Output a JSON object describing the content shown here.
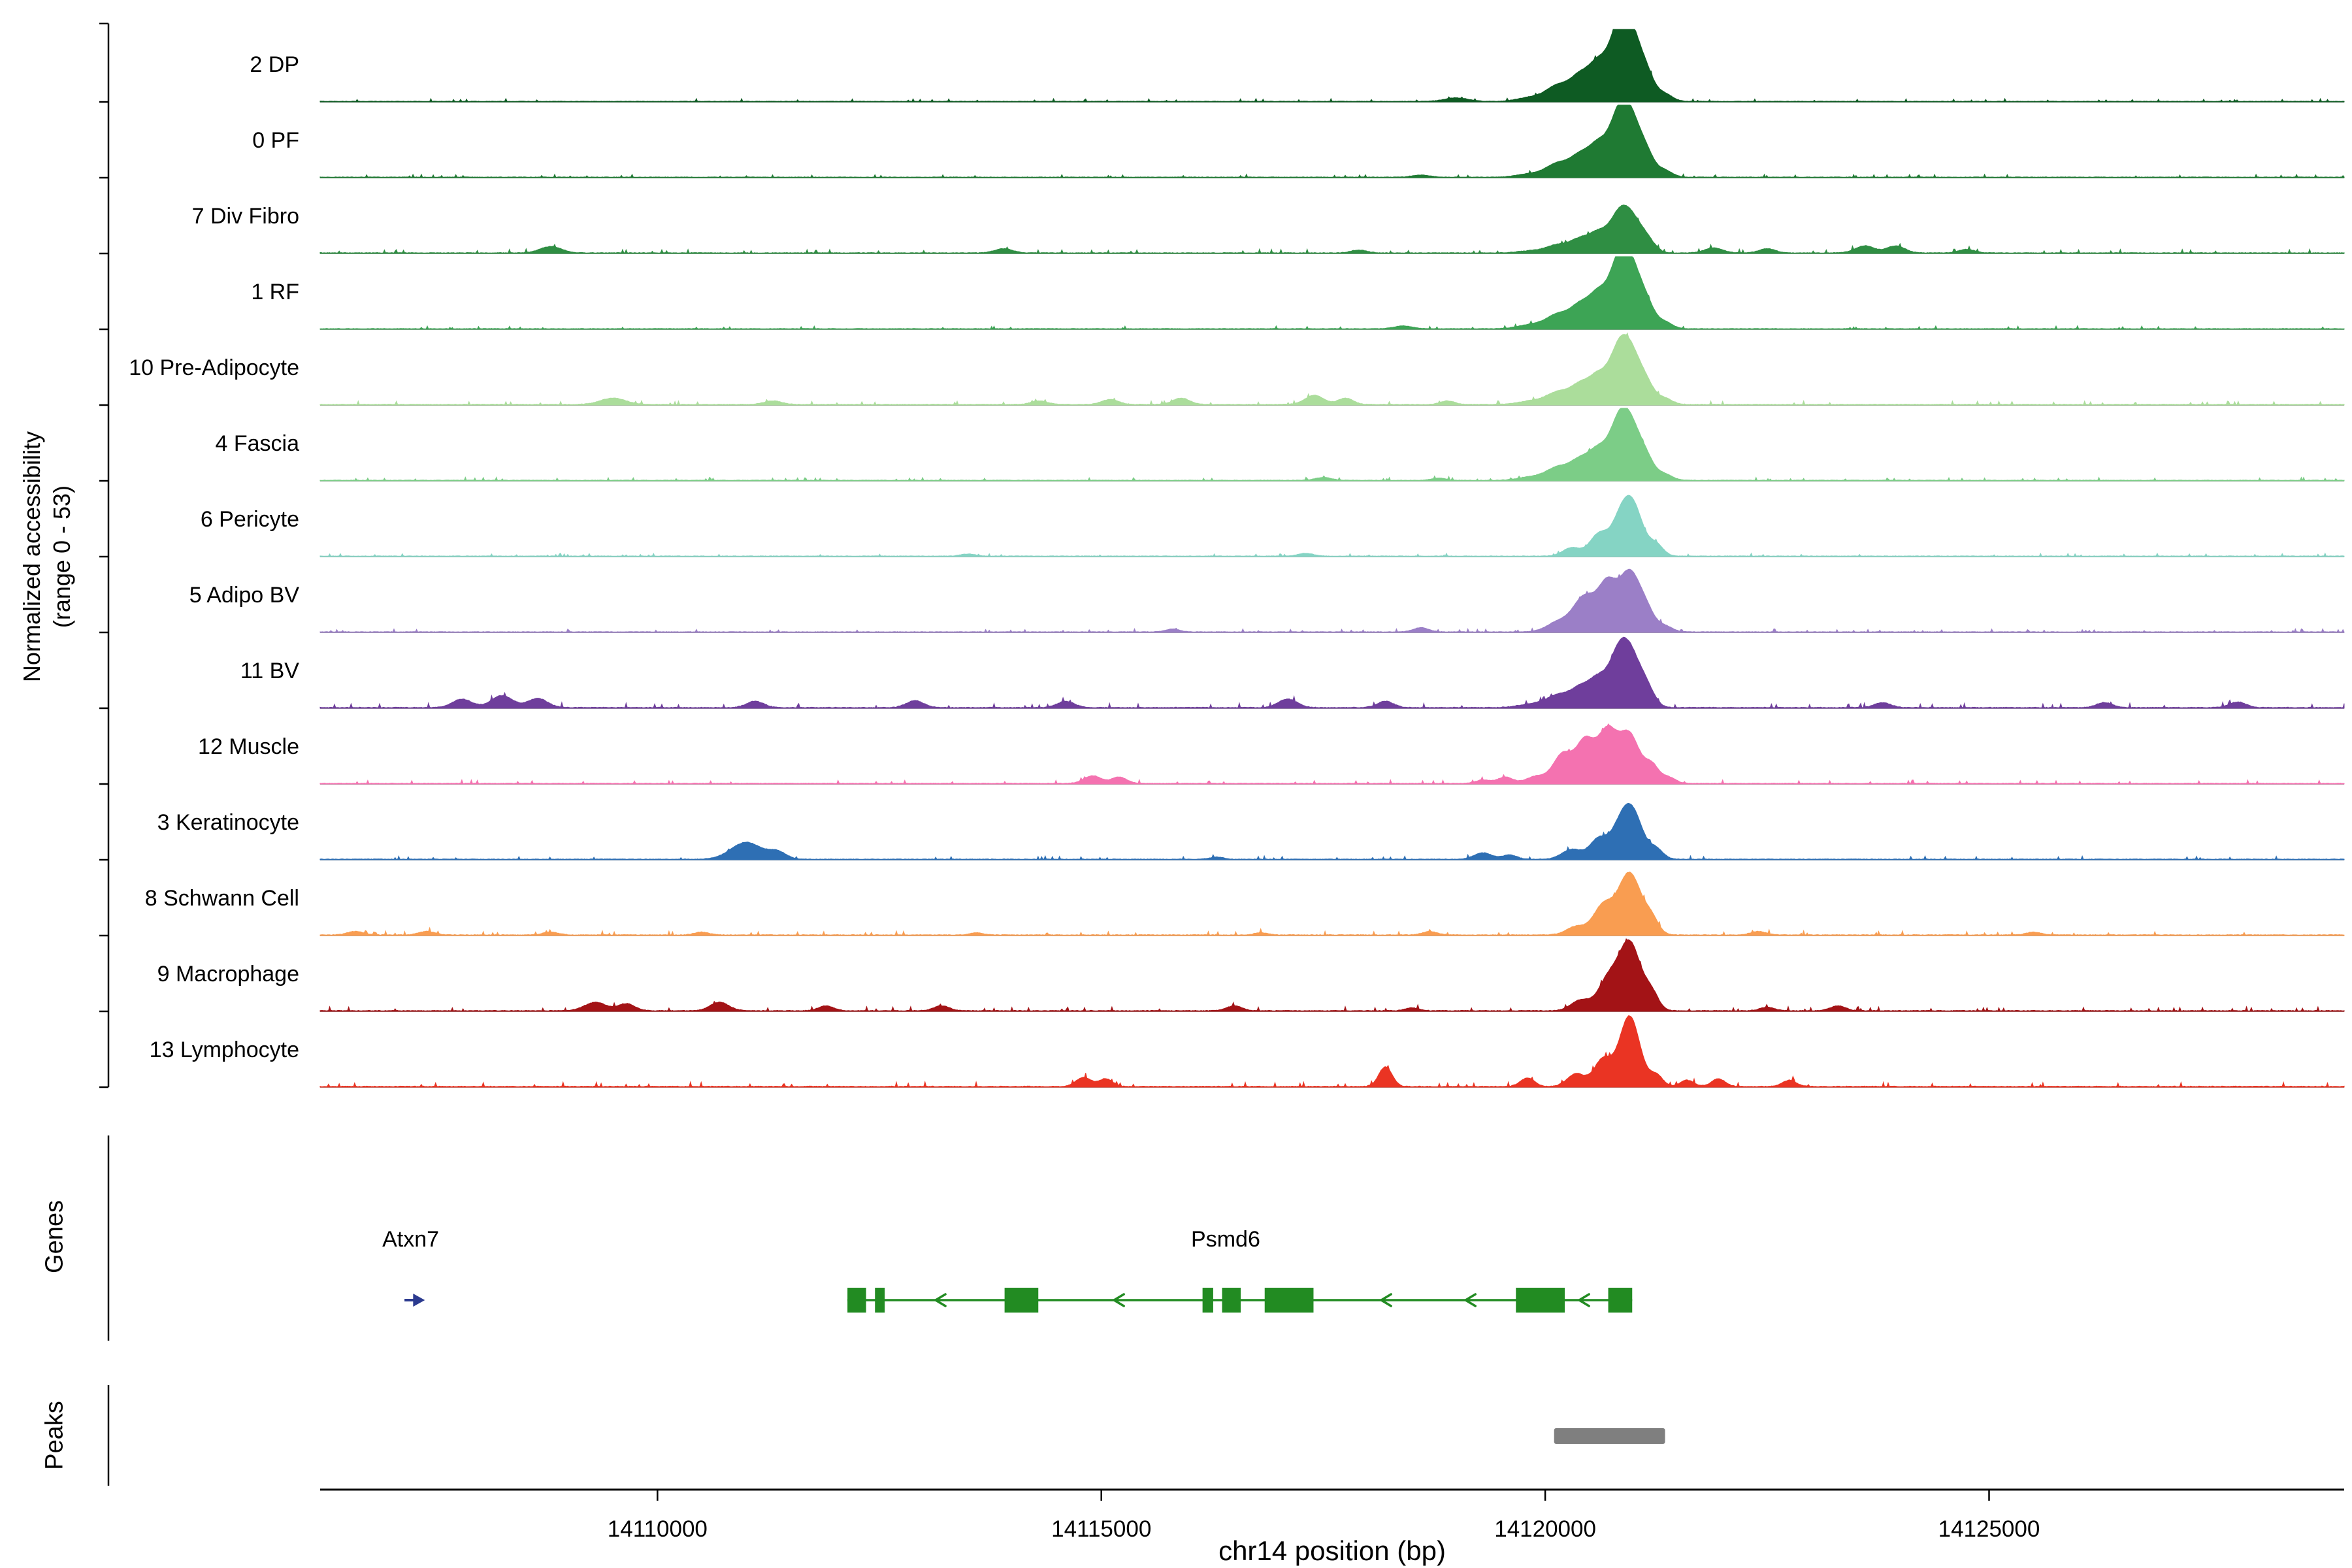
{
  "y_axis": {
    "label_line1": "Normalized accessibility",
    "label_line2": "(range 0 - 53)"
  },
  "sections": {
    "genes_label": "Genes",
    "peaks_label": "Peaks"
  },
  "x_axis": {
    "title": "chr14 position (bp)"
  },
  "chart_data": {
    "type": "area",
    "title": "",
    "xlabel": "chr14 position (bp)",
    "ylabel": "Normalized accessibility (range 0 - 53)",
    "xlim": [
      14106200,
      14129000
    ],
    "range": [
      0,
      53
    ],
    "grid": false,
    "x_ticks": [
      {
        "bp": 14110000,
        "label": "14110000"
      },
      {
        "bp": 14115000,
        "label": "14115000"
      },
      {
        "bp": 14120000,
        "label": "14120000"
      },
      {
        "bp": 14125000,
        "label": "14125000"
      }
    ],
    "tracks": [
      {
        "label": "2 DP",
        "color": "#0E5B23",
        "noise": 0.012,
        "peaks": [
          [
            14119000,
            0.05,
            260
          ],
          [
            14119850,
            0.06,
            300
          ],
          [
            14120150,
            0.22,
            260
          ],
          [
            14120400,
            0.34,
            220
          ],
          [
            14120600,
            0.48,
            200
          ],
          [
            14120800,
            0.62,
            200
          ],
          [
            14120950,
            1.0,
            240
          ],
          [
            14121150,
            0.28,
            180
          ],
          [
            14121350,
            0.1,
            170
          ]
        ]
      },
      {
        "label": "0 PF",
        "color": "#1F7A33",
        "noise": 0.012,
        "peaks": [
          [
            14118600,
            0.03,
            200
          ],
          [
            14119850,
            0.05,
            300
          ],
          [
            14120150,
            0.19,
            260
          ],
          [
            14120400,
            0.29,
            220
          ],
          [
            14120600,
            0.41,
            200
          ],
          [
            14120800,
            0.53,
            200
          ],
          [
            14120950,
            0.86,
            240
          ],
          [
            14121150,
            0.24,
            180
          ],
          [
            14121350,
            0.09,
            170
          ]
        ]
      },
      {
        "label": "7 Div Fibro",
        "color": "#2F8E43",
        "noise": 0.016,
        "peaks": [
          [
            14108800,
            0.09,
            240
          ],
          [
            14113900,
            0.06,
            200
          ],
          [
            14117900,
            0.04,
            180
          ],
          [
            14119850,
            0.03,
            300
          ],
          [
            14120150,
            0.11,
            260
          ],
          [
            14120400,
            0.18,
            220
          ],
          [
            14120600,
            0.25,
            200
          ],
          [
            14120800,
            0.32,
            200
          ],
          [
            14120950,
            0.52,
            240
          ],
          [
            14121150,
            0.15,
            180
          ],
          [
            14121900,
            0.07,
            200
          ],
          [
            14122500,
            0.06,
            180
          ],
          [
            14123600,
            0.1,
            220
          ],
          [
            14123950,
            0.1,
            200
          ],
          [
            14124750,
            0.05,
            180
          ]
        ]
      },
      {
        "label": "1 RF",
        "color": "#3DA455",
        "noise": 0.012,
        "peaks": [
          [
            14118400,
            0.04,
            200
          ],
          [
            14119850,
            0.06,
            300
          ],
          [
            14120150,
            0.2,
            260
          ],
          [
            14120400,
            0.31,
            220
          ],
          [
            14120600,
            0.44,
            200
          ],
          [
            14120800,
            0.57,
            200
          ],
          [
            14120950,
            0.92,
            240
          ],
          [
            14121150,
            0.26,
            180
          ],
          [
            14121350,
            0.09,
            170
          ]
        ]
      },
      {
        "label": "10 Pre-Adipocyte",
        "color": "#ABDD9B",
        "noise": 0.016,
        "peaks": [
          [
            14109500,
            0.09,
            280
          ],
          [
            14111300,
            0.05,
            200
          ],
          [
            14114300,
            0.05,
            180
          ],
          [
            14115100,
            0.07,
            190
          ],
          [
            14115900,
            0.09,
            190
          ],
          [
            14117400,
            0.13,
            210
          ],
          [
            14117750,
            0.09,
            170
          ],
          [
            14118900,
            0.05,
            160
          ],
          [
            14119850,
            0.05,
            300
          ],
          [
            14120150,
            0.17,
            260
          ],
          [
            14120400,
            0.26,
            220
          ],
          [
            14120600,
            0.36,
            200
          ],
          [
            14120800,
            0.47,
            200
          ],
          [
            14120950,
            0.76,
            240
          ],
          [
            14121150,
            0.21,
            180
          ],
          [
            14121350,
            0.08,
            170
          ]
        ]
      },
      {
        "label": "4 Fascia",
        "color": "#7CCD87",
        "noise": 0.013,
        "peaks": [
          [
            14117500,
            0.04,
            180
          ],
          [
            14118800,
            0.03,
            160
          ],
          [
            14119850,
            0.05,
            300
          ],
          [
            14120150,
            0.18,
            260
          ],
          [
            14120400,
            0.27,
            220
          ],
          [
            14120600,
            0.38,
            200
          ],
          [
            14120800,
            0.5,
            200
          ],
          [
            14120950,
            0.8,
            240
          ],
          [
            14121150,
            0.22,
            180
          ],
          [
            14121350,
            0.08,
            170
          ]
        ]
      },
      {
        "label": "6 Pericyte",
        "color": "#85D4C4",
        "noise": 0.012,
        "peaks": [
          [
            14113500,
            0.03,
            160
          ],
          [
            14117300,
            0.04,
            170
          ],
          [
            14120300,
            0.12,
            200
          ],
          [
            14120600,
            0.3,
            200
          ],
          [
            14120850,
            0.48,
            220
          ],
          [
            14121000,
            0.6,
            220
          ],
          [
            14121250,
            0.16,
            160
          ]
        ]
      },
      {
        "label": "5 Adipo BV",
        "color": "#9B7FC7",
        "noise": 0.013,
        "peaks": [
          [
            14115800,
            0.04,
            160
          ],
          [
            14118600,
            0.06,
            170
          ],
          [
            14120150,
            0.14,
            260
          ],
          [
            14120450,
            0.5,
            260
          ],
          [
            14120700,
            0.6,
            200
          ],
          [
            14120950,
            0.84,
            240
          ],
          [
            14121150,
            0.23,
            180
          ],
          [
            14121350,
            0.08,
            170
          ]
        ]
      },
      {
        "label": "11 BV",
        "color": "#6F3E9C",
        "noise": 0.02,
        "peaks": [
          [
            14107800,
            0.12,
            220
          ],
          [
            14108250,
            0.17,
            240
          ],
          [
            14108650,
            0.13,
            220
          ],
          [
            14111100,
            0.09,
            190
          ],
          [
            14112900,
            0.1,
            190
          ],
          [
            14114600,
            0.09,
            190
          ],
          [
            14117100,
            0.12,
            210
          ],
          [
            14118200,
            0.09,
            180
          ],
          [
            14119850,
            0.05,
            300
          ],
          [
            14120150,
            0.17,
            260
          ],
          [
            14120400,
            0.26,
            220
          ],
          [
            14120600,
            0.36,
            200
          ],
          [
            14120800,
            0.47,
            200
          ],
          [
            14120950,
            0.76,
            240
          ],
          [
            14121150,
            0.21,
            180
          ],
          [
            14123800,
            0.07,
            180
          ],
          [
            14126300,
            0.07,
            180
          ],
          [
            14127800,
            0.08,
            180
          ]
        ]
      },
      {
        "label": "12 Muscle",
        "color": "#F472B0",
        "noise": 0.015,
        "peaks": [
          [
            14114900,
            0.11,
            190
          ],
          [
            14115200,
            0.09,
            170
          ],
          [
            14119300,
            0.05,
            160
          ],
          [
            14119550,
            0.09,
            170
          ],
          [
            14119900,
            0.1,
            220
          ],
          [
            14120200,
            0.42,
            220
          ],
          [
            14120450,
            0.58,
            200
          ],
          [
            14120700,
            0.74,
            220
          ],
          [
            14120950,
            0.68,
            220
          ],
          [
            14121200,
            0.26,
            170
          ],
          [
            14121400,
            0.08,
            150
          ]
        ]
      },
      {
        "label": "3 Keratinocyte",
        "color": "#2E6FB4",
        "noise": 0.015,
        "peaks": [
          [
            14111000,
            0.24,
            340
          ],
          [
            14111350,
            0.1,
            200
          ],
          [
            14116300,
            0.03,
            150
          ],
          [
            14119300,
            0.09,
            200
          ],
          [
            14119600,
            0.06,
            160
          ],
          [
            14120300,
            0.14,
            220
          ],
          [
            14120600,
            0.28,
            200
          ],
          [
            14120850,
            0.44,
            220
          ],
          [
            14121000,
            0.55,
            220
          ],
          [
            14121250,
            0.14,
            160
          ]
        ]
      },
      {
        "label": "8 Schwann Cell",
        "color": "#F99D51",
        "noise": 0.018,
        "peaks": [
          [
            14106600,
            0.05,
            180
          ],
          [
            14107400,
            0.05,
            180
          ],
          [
            14108800,
            0.04,
            170
          ],
          [
            14110500,
            0.04,
            160
          ],
          [
            14113600,
            0.03,
            150
          ],
          [
            14116800,
            0.03,
            150
          ],
          [
            14118700,
            0.05,
            160
          ],
          [
            14120350,
            0.12,
            220
          ],
          [
            14120650,
            0.4,
            220
          ],
          [
            14120950,
            0.88,
            260
          ],
          [
            14121200,
            0.2,
            160
          ],
          [
            14122400,
            0.05,
            170
          ],
          [
            14125500,
            0.04,
            160
          ]
        ]
      },
      {
        "label": "9 Macrophage",
        "color": "#A31316",
        "noise": 0.018,
        "peaks": [
          [
            14109300,
            0.12,
            240
          ],
          [
            14109650,
            0.1,
            190
          ],
          [
            14110700,
            0.12,
            210
          ],
          [
            14111900,
            0.07,
            170
          ],
          [
            14113200,
            0.07,
            170
          ],
          [
            14116500,
            0.07,
            170
          ],
          [
            14118500,
            0.04,
            150
          ],
          [
            14120400,
            0.15,
            220
          ],
          [
            14120700,
            0.4,
            220
          ],
          [
            14120950,
            0.97,
            250
          ],
          [
            14121200,
            0.22,
            160
          ],
          [
            14122500,
            0.05,
            160
          ],
          [
            14123300,
            0.07,
            170
          ]
        ]
      },
      {
        "label": "13 Lymphocyte",
        "color": "#EA3423",
        "noise": 0.02,
        "peaks": [
          [
            14114800,
            0.13,
            170
          ],
          [
            14115050,
            0.11,
            150
          ],
          [
            14118200,
            0.28,
            150
          ],
          [
            14119800,
            0.12,
            160
          ],
          [
            14120350,
            0.18,
            200
          ],
          [
            14120650,
            0.38,
            200
          ],
          [
            14120950,
            1.0,
            230
          ],
          [
            14121250,
            0.16,
            150
          ],
          [
            14121600,
            0.09,
            150
          ],
          [
            14121950,
            0.11,
            150
          ],
          [
            14122750,
            0.09,
            150
          ]
        ]
      }
    ],
    "genes": [
      {
        "name": "Atxn7",
        "strand": "+",
        "color": "#2B3A8F",
        "start": 14107150,
        "end": 14107380,
        "exons": [],
        "direction_marks": [],
        "label_bp": 14106900,
        "label_anchor": "start"
      },
      {
        "name": "Psmd6",
        "strand": "-",
        "color": "#228B22",
        "start": 14112140,
        "end": 14120980,
        "exons": [
          [
            14112140,
            14112350
          ],
          [
            14112450,
            14112560
          ],
          [
            14113910,
            14114290
          ],
          [
            14116140,
            14116260
          ],
          [
            14116360,
            14116570
          ],
          [
            14116840,
            14117390
          ],
          [
            14119670,
            14120220
          ],
          [
            14120710,
            14120980
          ]
        ],
        "direction_marks": [
          14113170,
          14115180,
          14118190,
          14119140,
          14120420
        ],
        "label_bp": 14116400,
        "label_anchor": "middle"
      }
    ],
    "peak_regions": [
      {
        "start": 14120100,
        "end": 14121350,
        "color": "#7F7F7F"
      }
    ]
  }
}
